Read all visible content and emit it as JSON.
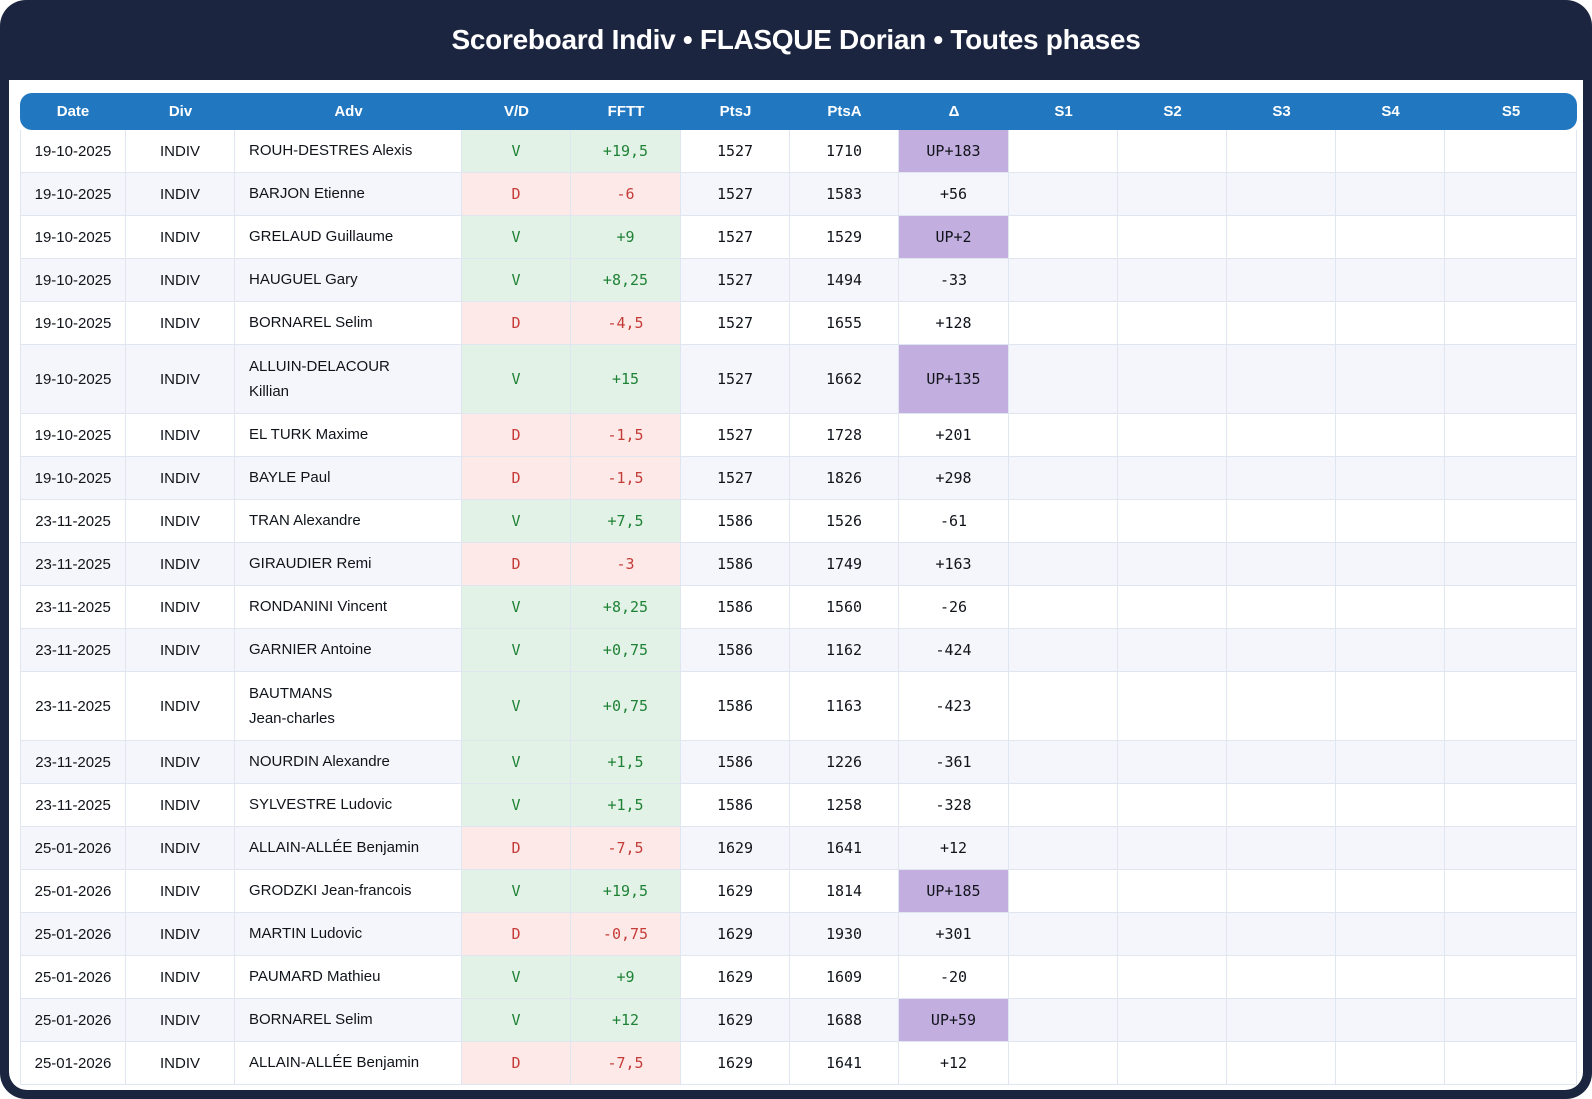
{
  "title": "Scoreboard Indiv • FLASQUE Dorian • Toutes phases",
  "colors": {
    "navy": "#1b2540",
    "header_blue": "#2177c0",
    "win_bg": "#e3f2e6",
    "win_text": "#1e8236",
    "loss_bg": "#fdeae8",
    "loss_text": "#c53b38",
    "delta_up_bg": "#c3aee0",
    "row_stripe": "#f4f6fb",
    "grid_line": "#e0e6f0"
  },
  "table": {
    "columns": [
      "Date",
      "Div",
      "Adv",
      "V/D",
      "FFTT",
      "PtsJ",
      "PtsA",
      "Δ",
      "S1",
      "S2",
      "S3",
      "S4",
      "S5"
    ],
    "rows": [
      {
        "date": "19-10-2025",
        "div": "INDIV",
        "adv": "ROUH-DESTRES Alexis",
        "vd": "V",
        "fftt": "+19,5",
        "ptsj": "1527",
        "ptsa": "1710",
        "delta": "UP+183",
        "s1": "",
        "s2": "",
        "s3": "",
        "s4": "",
        "s5": ""
      },
      {
        "date": "19-10-2025",
        "div": "INDIV",
        "adv": "BARJON Etienne",
        "vd": "D",
        "fftt": "-6",
        "ptsj": "1527",
        "ptsa": "1583",
        "delta": "+56",
        "s1": "",
        "s2": "",
        "s3": "",
        "s4": "",
        "s5": ""
      },
      {
        "date": "19-10-2025",
        "div": "INDIV",
        "adv": "GRELAUD Guillaume",
        "vd": "V",
        "fftt": "+9",
        "ptsj": "1527",
        "ptsa": "1529",
        "delta": "UP+2",
        "s1": "",
        "s2": "",
        "s3": "",
        "s4": "",
        "s5": ""
      },
      {
        "date": "19-10-2025",
        "div": "INDIV",
        "adv": "HAUGUEL Gary",
        "vd": "V",
        "fftt": "+8,25",
        "ptsj": "1527",
        "ptsa": "1494",
        "delta": "-33",
        "s1": "",
        "s2": "",
        "s3": "",
        "s4": "",
        "s5": ""
      },
      {
        "date": "19-10-2025",
        "div": "INDIV",
        "adv": "BORNAREL Selim",
        "vd": "D",
        "fftt": "-4,5",
        "ptsj": "1527",
        "ptsa": "1655",
        "delta": "+128",
        "s1": "",
        "s2": "",
        "s3": "",
        "s4": "",
        "s5": ""
      },
      {
        "date": "19-10-2025",
        "div": "INDIV",
        "adv": "ALLUIN-DELACOUR\nKillian",
        "vd": "V",
        "fftt": "+15",
        "ptsj": "1527",
        "ptsa": "1662",
        "delta": "UP+135",
        "s1": "",
        "s2": "",
        "s3": "",
        "s4": "",
        "s5": ""
      },
      {
        "date": "19-10-2025",
        "div": "INDIV",
        "adv": "EL TURK Maxime",
        "vd": "D",
        "fftt": "-1,5",
        "ptsj": "1527",
        "ptsa": "1728",
        "delta": "+201",
        "s1": "",
        "s2": "",
        "s3": "",
        "s4": "",
        "s5": ""
      },
      {
        "date": "19-10-2025",
        "div": "INDIV",
        "adv": "BAYLE Paul",
        "vd": "D",
        "fftt": "-1,5",
        "ptsj": "1527",
        "ptsa": "1826",
        "delta": "+298",
        "s1": "",
        "s2": "",
        "s3": "",
        "s4": "",
        "s5": ""
      },
      {
        "date": "23-11-2025",
        "div": "INDIV",
        "adv": "TRAN Alexandre",
        "vd": "V",
        "fftt": "+7,5",
        "ptsj": "1586",
        "ptsa": "1526",
        "delta": "-61",
        "s1": "",
        "s2": "",
        "s3": "",
        "s4": "",
        "s5": ""
      },
      {
        "date": "23-11-2025",
        "div": "INDIV",
        "adv": "GIRAUDIER Remi",
        "vd": "D",
        "fftt": "-3",
        "ptsj": "1586",
        "ptsa": "1749",
        "delta": "+163",
        "s1": "",
        "s2": "",
        "s3": "",
        "s4": "",
        "s5": ""
      },
      {
        "date": "23-11-2025",
        "div": "INDIV",
        "adv": "RONDANINI Vincent",
        "vd": "V",
        "fftt": "+8,25",
        "ptsj": "1586",
        "ptsa": "1560",
        "delta": "-26",
        "s1": "",
        "s2": "",
        "s3": "",
        "s4": "",
        "s5": ""
      },
      {
        "date": "23-11-2025",
        "div": "INDIV",
        "adv": "GARNIER Antoine",
        "vd": "V",
        "fftt": "+0,75",
        "ptsj": "1586",
        "ptsa": "1162",
        "delta": "-424",
        "s1": "",
        "s2": "",
        "s3": "",
        "s4": "",
        "s5": ""
      },
      {
        "date": "23-11-2025",
        "div": "INDIV",
        "adv": "BAUTMANS\nJean-charles",
        "vd": "V",
        "fftt": "+0,75",
        "ptsj": "1586",
        "ptsa": "1163",
        "delta": "-423",
        "s1": "",
        "s2": "",
        "s3": "",
        "s4": "",
        "s5": ""
      },
      {
        "date": "23-11-2025",
        "div": "INDIV",
        "adv": "NOURDIN Alexandre",
        "vd": "V",
        "fftt": "+1,5",
        "ptsj": "1586",
        "ptsa": "1226",
        "delta": "-361",
        "s1": "",
        "s2": "",
        "s3": "",
        "s4": "",
        "s5": ""
      },
      {
        "date": "23-11-2025",
        "div": "INDIV",
        "adv": "SYLVESTRE Ludovic",
        "vd": "V",
        "fftt": "+1,5",
        "ptsj": "1586",
        "ptsa": "1258",
        "delta": "-328",
        "s1": "",
        "s2": "",
        "s3": "",
        "s4": "",
        "s5": ""
      },
      {
        "date": "25-01-2026",
        "div": "INDIV",
        "adv": "ALLAIN-ALLÉE Benjamin",
        "vd": "D",
        "fftt": "-7,5",
        "ptsj": "1629",
        "ptsa": "1641",
        "delta": "+12",
        "s1": "",
        "s2": "",
        "s3": "",
        "s4": "",
        "s5": ""
      },
      {
        "date": "25-01-2026",
        "div": "INDIV",
        "adv": "GRODZKI Jean-francois",
        "vd": "V",
        "fftt": "+19,5",
        "ptsj": "1629",
        "ptsa": "1814",
        "delta": "UP+185",
        "s1": "",
        "s2": "",
        "s3": "",
        "s4": "",
        "s5": ""
      },
      {
        "date": "25-01-2026",
        "div": "INDIV",
        "adv": "MARTIN Ludovic",
        "vd": "D",
        "fftt": "-0,75",
        "ptsj": "1629",
        "ptsa": "1930",
        "delta": "+301",
        "s1": "",
        "s2": "",
        "s3": "",
        "s4": "",
        "s5": ""
      },
      {
        "date": "25-01-2026",
        "div": "INDIV",
        "adv": "PAUMARD Mathieu",
        "vd": "V",
        "fftt": "+9",
        "ptsj": "1629",
        "ptsa": "1609",
        "delta": "-20",
        "s1": "",
        "s2": "",
        "s3": "",
        "s4": "",
        "s5": ""
      },
      {
        "date": "25-01-2026",
        "div": "INDIV",
        "adv": "BORNAREL Selim",
        "vd": "V",
        "fftt": "+12",
        "ptsj": "1629",
        "ptsa": "1688",
        "delta": "UP+59",
        "s1": "",
        "s2": "",
        "s3": "",
        "s4": "",
        "s5": ""
      },
      {
        "date": "25-01-2026",
        "div": "INDIV",
        "adv": "ALLAIN-ALLÉE Benjamin",
        "vd": "D",
        "fftt": "-7,5",
        "ptsj": "1629",
        "ptsa": "1641",
        "delta": "+12",
        "s1": "",
        "s2": "",
        "s3": "",
        "s4": "",
        "s5": ""
      }
    ]
  }
}
